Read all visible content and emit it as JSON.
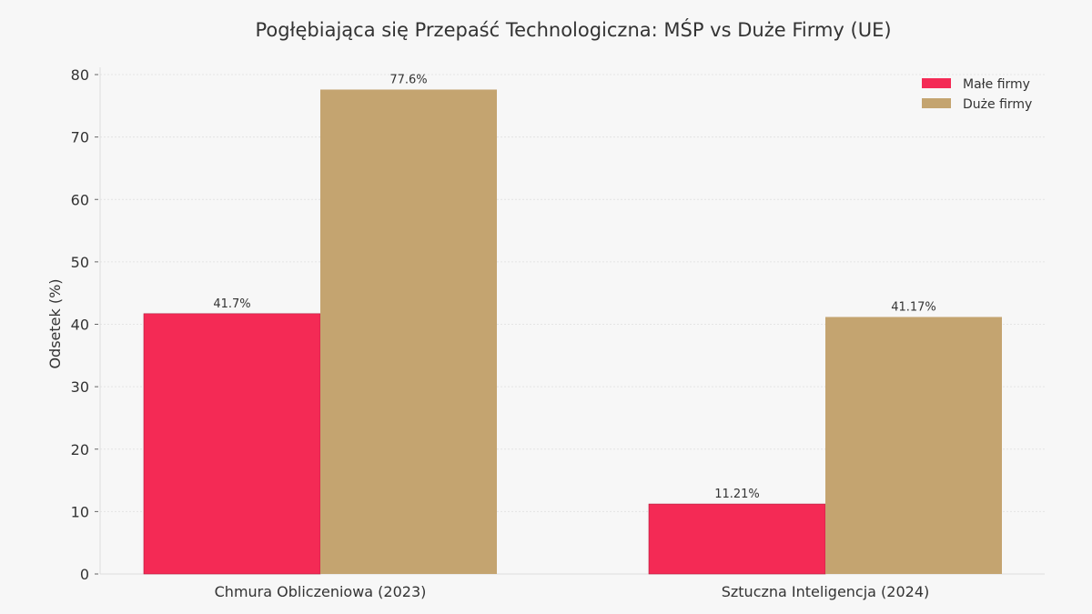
{
  "chart_data": {
    "type": "bar",
    "title": "Pogłębiająca się Przepaść Technologiczna: MŚP vs Duże Firmy (UE)",
    "xlabel": "",
    "ylabel": "Odsetek (%)",
    "ylim": [
      0,
      80
    ],
    "yticks": [
      0,
      10,
      20,
      30,
      40,
      50,
      60,
      70,
      80
    ],
    "grid": true,
    "legend_position": "top-right",
    "categories": [
      "Chmura Obliczeniowa (2023)",
      "Sztuczna Inteligencja (2024)"
    ],
    "series": [
      {
        "name": "Małe firmy",
        "color": "#f42a55",
        "values": [
          41.7,
          11.21
        ],
        "labels": [
          "41.7%",
          "11.21%"
        ]
      },
      {
        "name": "Duże firmy",
        "color": "#c4a470",
        "values": [
          77.6,
          41.17
        ],
        "labels": [
          "77.6%",
          "41.17%"
        ]
      }
    ]
  }
}
